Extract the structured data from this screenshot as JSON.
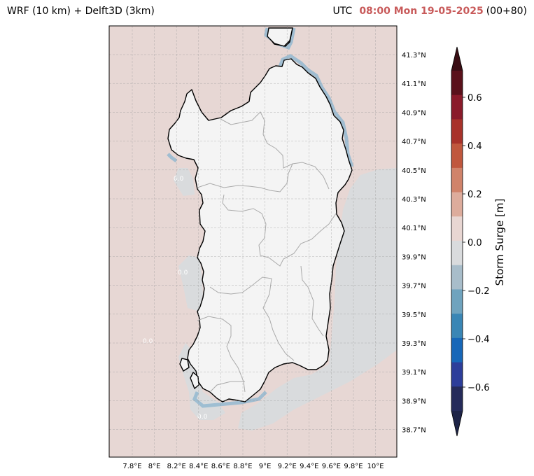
{
  "title_left": "WRF (10 km) + Delft3D (3km)",
  "title_right": {
    "utc_label": "UTC",
    "time": "08:00 Mon 19-05-2025",
    "lead": "(00+80)"
  },
  "map": {
    "lat_labels": [
      "41.3°N",
      "41.1°N",
      "40.9°N",
      "40.7°N",
      "40.5°N",
      "40.3°N",
      "40.1°N",
      "39.9°N",
      "39.7°N",
      "39.5°N",
      "39.3°N",
      "39.1°N",
      "38.9°N",
      "38.7°N"
    ],
    "lon_labels": [
      "7.8°E",
      "8°E",
      "8.2°E",
      "8.4°E",
      "8.6°E",
      "8.8°E",
      "9°E",
      "9.2°E",
      "9.4°E",
      "9.6°E",
      "9.8°E",
      "10°E"
    ],
    "contour_labels": [
      "0.0",
      "0.0",
      "0.0",
      "0.0"
    ],
    "colors": {
      "sea_positive": "#e7d7d4",
      "sea_neutral": "#d9dbdd",
      "land": "#f4f4f4",
      "coast_line": "#000000",
      "border_line": "#aaaaaa"
    }
  },
  "colorbar": {
    "title": "Storm Surge [m]",
    "tick_labels": [
      "0.6",
      "0.4",
      "0.2",
      "0.0",
      "−0.2",
      "−0.4",
      "−0.6"
    ],
    "colors": [
      "#5a111b",
      "#8a1a2a",
      "#a8322a",
      "#c0573d",
      "#d0836a",
      "#ddac9c",
      "#e8d6d2",
      "#d9dbdd",
      "#a8bdca",
      "#6fa3be",
      "#3a86b5",
      "#1767b8",
      "#2d3e9a",
      "#252b5a"
    ]
  }
}
